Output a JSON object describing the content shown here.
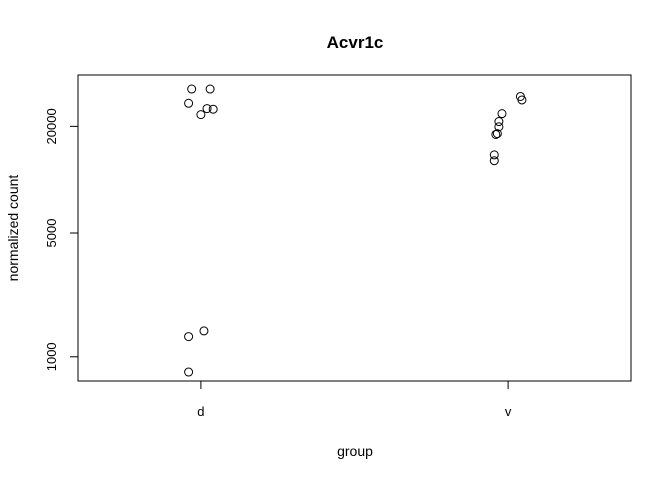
{
  "chart_data": {
    "type": "scatter",
    "title": "Acvr1c",
    "xlabel": "group",
    "ylabel": "normalized count",
    "categories": [
      "d",
      "v"
    ],
    "y_scale": "log",
    "ylim": [
      730,
      39000
    ],
    "yticks": [
      1000,
      5000,
      20000
    ],
    "ytick_labels": [
      "1000",
      "5000",
      "20000"
    ],
    "grid": false,
    "marker": "open-circle",
    "points": [
      {
        "group": "d",
        "jitter": -0.03,
        "y": 32500
      },
      {
        "group": "d",
        "jitter": 0.03,
        "y": 32500
      },
      {
        "group": "d",
        "jitter": -0.04,
        "y": 27000
      },
      {
        "group": "d",
        "jitter": 0.02,
        "y": 25200
      },
      {
        "group": "d",
        "jitter": 0.04,
        "y": 25000
      },
      {
        "group": "d",
        "jitter": 0.0,
        "y": 23300
      },
      {
        "group": "d",
        "jitter": 0.01,
        "y": 1400
      },
      {
        "group": "d",
        "jitter": -0.04,
        "y": 1300
      },
      {
        "group": "d",
        "jitter": -0.04,
        "y": 820
      },
      {
        "group": "v",
        "jitter": 0.04,
        "y": 29500
      },
      {
        "group": "v",
        "jitter": 0.045,
        "y": 28200
      },
      {
        "group": "v",
        "jitter": -0.02,
        "y": 23600
      },
      {
        "group": "v",
        "jitter": -0.03,
        "y": 21300
      },
      {
        "group": "v",
        "jitter": -0.03,
        "y": 19900
      },
      {
        "group": "v",
        "jitter": -0.035,
        "y": 18200
      },
      {
        "group": "v",
        "jitter": -0.04,
        "y": 18000
      },
      {
        "group": "v",
        "jitter": -0.045,
        "y": 13800
      },
      {
        "group": "v",
        "jitter": -0.045,
        "y": 12800
      }
    ]
  }
}
